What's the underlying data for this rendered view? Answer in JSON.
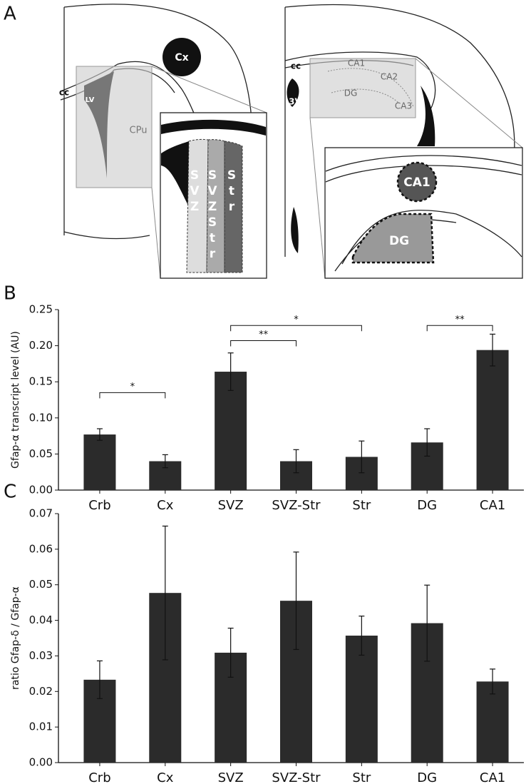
{
  "diagram": {
    "panel": "A",
    "left": {
      "cx": "Cx",
      "cc": "cc",
      "lv": "LV",
      "cpu": "CPu",
      "columns": [
        "SVZ",
        "SVZStr",
        "Str"
      ]
    },
    "right": {
      "cc": "cc",
      "v3": "3V",
      "ca1": "CA1",
      "ca2": "CA2",
      "ca3": "CA3",
      "dg": "DG",
      "inset_ca1": "CA1",
      "inset_dg": "DG"
    }
  },
  "chart_data": [
    {
      "type": "bar",
      "panel": "B",
      "ylabel": "Gfap-α transcript level (AU)",
      "categories": [
        "Crb",
        "Cx",
        "SVZ",
        "SVZ-Str",
        "Str",
        "DG",
        "CA1"
      ],
      "values": [
        0.077,
        0.04,
        0.164,
        0.04,
        0.046,
        0.066,
        0.194
      ],
      "errors": [
        0.008,
        0.009,
        0.026,
        0.016,
        0.022,
        0.019,
        0.022
      ],
      "color": "#2b2b2b",
      "ylim": [
        0,
        0.25
      ],
      "yticks": [
        {
          "value": 0,
          "label": "0.00"
        },
        {
          "value": 0.05,
          "label": "0.05"
        },
        {
          "value": 0.1,
          "label": "0.10"
        },
        {
          "value": 0.15,
          "label": "0.15"
        },
        {
          "value": 0.2,
          "label": "0.20"
        },
        {
          "value": 0.25,
          "label": "0.25"
        }
      ],
      "annotations": [
        {
          "from": "Crb",
          "to": "Cx",
          "level": 0.135,
          "text": "*"
        },
        {
          "from": "SVZ",
          "to": "SVZ-Str",
          "level": 0.207,
          "text": "**"
        },
        {
          "from": "SVZ",
          "to": "Str",
          "level": 0.228,
          "text": "*"
        },
        {
          "from": "DG",
          "to": "CA1",
          "level": 0.228,
          "text": "**"
        }
      ]
    },
    {
      "type": "bar",
      "panel": "C",
      "ylabel": "ratio Gfap-δ / Gfap-α",
      "categories": [
        "Crb",
        "Cx",
        "SVZ",
        "SVZ-Str",
        "Str",
        "DG",
        "CA1"
      ],
      "values": [
        0.0233,
        0.0477,
        0.0309,
        0.0455,
        0.0357,
        0.0392,
        0.0228
      ],
      "errors": [
        0.0053,
        0.0188,
        0.0069,
        0.0137,
        0.0055,
        0.0107,
        0.0035
      ],
      "color": "#2b2b2b",
      "ylim": [
        0,
        0.07
      ],
      "yticks": [
        {
          "value": 0,
          "label": "0.00"
        },
        {
          "value": 0.01,
          "label": "0.01"
        },
        {
          "value": 0.02,
          "label": "0.02"
        },
        {
          "value": 0.03,
          "label": "0.03"
        },
        {
          "value": 0.04,
          "label": "0.04"
        },
        {
          "value": 0.05,
          "label": "0.05"
        },
        {
          "value": 0.06,
          "label": "0.06"
        },
        {
          "value": 0.07,
          "label": "0.07"
        }
      ]
    }
  ]
}
